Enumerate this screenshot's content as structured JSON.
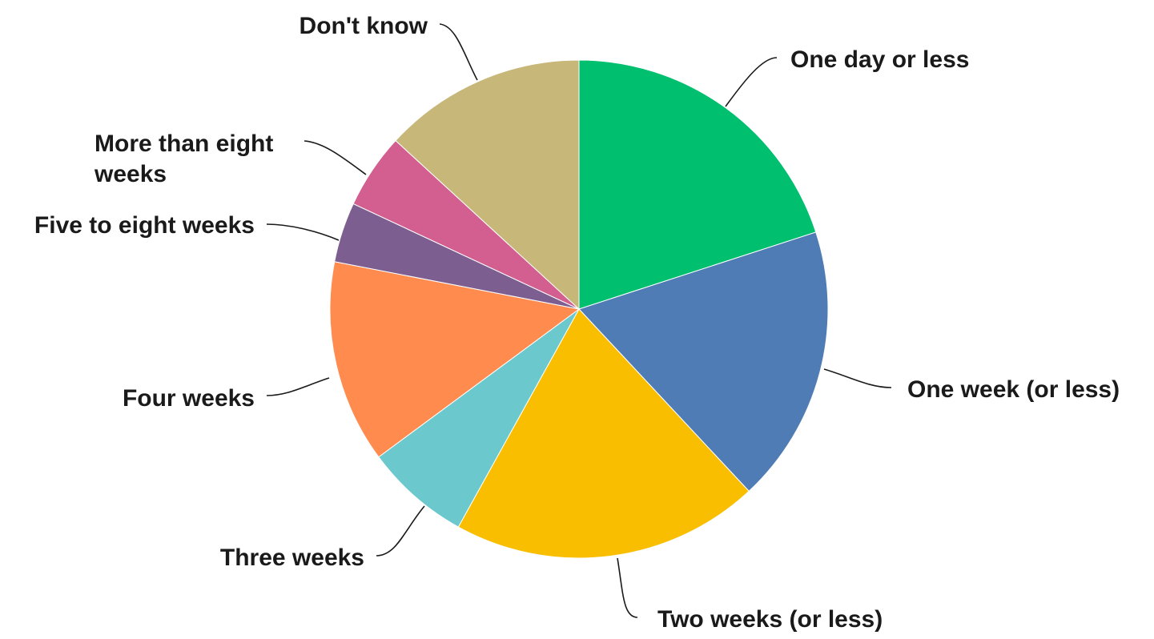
{
  "chart_data": {
    "type": "pie",
    "title": "",
    "slices": [
      {
        "label": "One day or less",
        "value": 20.5,
        "color": "#00BF6F"
      },
      {
        "label": "One week (or less)",
        "value": 18.5,
        "color": "#507CB6"
      },
      {
        "label": "Two weeks (or less)",
        "value": 20.5,
        "color": "#F9BE00"
      },
      {
        "label": "Three weeks",
        "value": 7.0,
        "color": "#6BC8CD"
      },
      {
        "label": "Four weeks",
        "value": 13.5,
        "color": "#FF8B4F"
      },
      {
        "label": "Five to eight weeks",
        "value": 4.0,
        "color": "#7D5E90"
      },
      {
        "label": "More than eight weeks",
        "value": 5.0,
        "color": "#D25F90"
      },
      {
        "label": "Don't know",
        "value": 13.5,
        "color": "#C7B879"
      }
    ]
  }
}
